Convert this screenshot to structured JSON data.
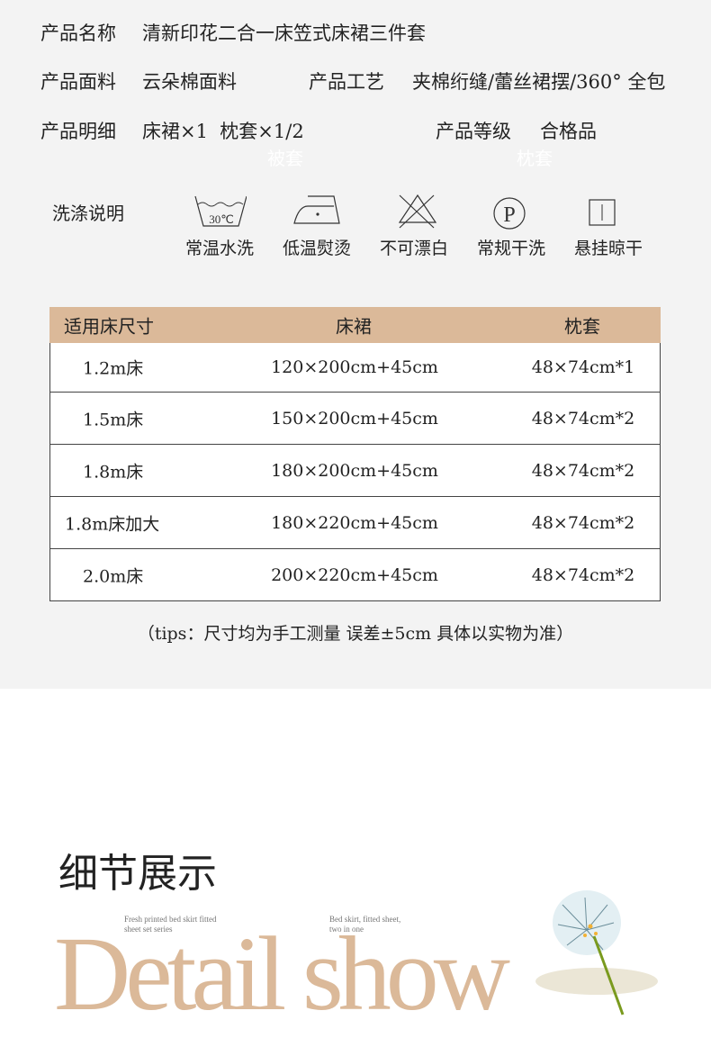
{
  "specs": {
    "name_label": "产品名称",
    "name_value": "清新印花二合一床笠式床裙三件套",
    "fabric_label": "产品面料",
    "fabric_value": "云朵棉面料",
    "craft_label": "产品工艺",
    "craft_value": "夹棉绗缝/蕾丝裙摆/360° 全包",
    "detail_label": "产品明细",
    "detail_value": "床裙×1  枕套×1/2",
    "grade_label": "产品等级",
    "grade_value": "合格品",
    "ghost_1": "被套",
    "ghost_2": "枕套"
  },
  "washing": {
    "label": "洗涤说明",
    "items": [
      {
        "icon": "wash-30c-icon",
        "temp": "30℃",
        "label": "常温水洗"
      },
      {
        "icon": "iron-low-icon",
        "label": "低温熨烫"
      },
      {
        "icon": "no-bleach-icon",
        "label": "不可漂白"
      },
      {
        "icon": "dry-clean-p-icon",
        "symbol": "P",
        "label": "常规干洗"
      },
      {
        "icon": "hang-dry-icon",
        "label": "悬挂晾干"
      }
    ]
  },
  "size_table": {
    "headers": [
      "适用床尺寸",
      "床裙",
      "枕套"
    ],
    "rows": [
      [
        "1.2m床",
        "120×200cm+45cm",
        "48×74cm*1"
      ],
      [
        "1.5m床",
        "150×200cm+45cm",
        "48×74cm*2"
      ],
      [
        "1.8m床",
        "180×200cm+45cm",
        "48×74cm*2"
      ],
      [
        "1.8m床加大",
        "180×220cm+45cm",
        "48×74cm*2"
      ],
      [
        "2.0m床",
        "200×220cm+45cm",
        "48×74cm*2"
      ]
    ],
    "header_color": "#dbb999"
  },
  "tips": "（tips：尺寸均为手工测量 误差±5cm 具体以实物为准）",
  "detail": {
    "title_cn": "细节展示",
    "title_en": "Detail show",
    "caption_1": "Fresh printed bed skirt fitted sheet set series",
    "caption_2": "Bed skirt, fitted sheet, two in one",
    "accent": "#dbb999"
  }
}
